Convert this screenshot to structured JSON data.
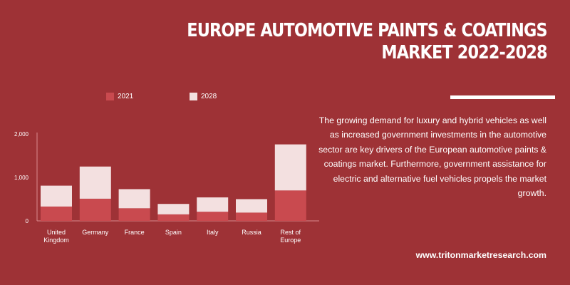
{
  "header": {
    "title_line1": "EUROPE AUTOMOTIVE PAINTS & COATINGS",
    "title_line2": "MARKET 2022-2028"
  },
  "description": "The growing demand for luxury and hybrid vehicles as well as increased government investments in the automotive sector are key drivers of the European automotive paints & coatings market. Furthermore, government assistance for electric and alternative fuel vehicles propels the market growth.",
  "website": "www.tritonmarketresearch.com",
  "colors": {
    "background": "#9e3236",
    "series_2021": "#c94a4f",
    "series_2028": "#f3e0e0"
  },
  "chart_data": {
    "type": "bar",
    "stacked": true,
    "categories": [
      "United Kingdom",
      "Germany",
      "France",
      "Spain",
      "Italy",
      "Russia",
      "Rest of Europe"
    ],
    "category_lines": [
      [
        "United",
        "Kingdom"
      ],
      [
        "Germany"
      ],
      [
        "France"
      ],
      [
        "Spain"
      ],
      [
        "Italy"
      ],
      [
        "Russia"
      ],
      [
        "Rest of",
        "Europe"
      ]
    ],
    "series": [
      {
        "name": "2021",
        "values": [
          330,
          510,
          290,
          150,
          210,
          190,
          700
        ]
      },
      {
        "name": "2028",
        "values": [
          480,
          740,
          440,
          240,
          330,
          310,
          1060
        ]
      }
    ],
    "ylim": [
      0,
      2000
    ],
    "yticks": [
      0,
      1000,
      2000
    ],
    "ytick_labels": [
      "0",
      "1,000",
      "2,000"
    ],
    "legend_position": "top",
    "grid": false,
    "title": "",
    "xlabel": "",
    "ylabel": ""
  }
}
